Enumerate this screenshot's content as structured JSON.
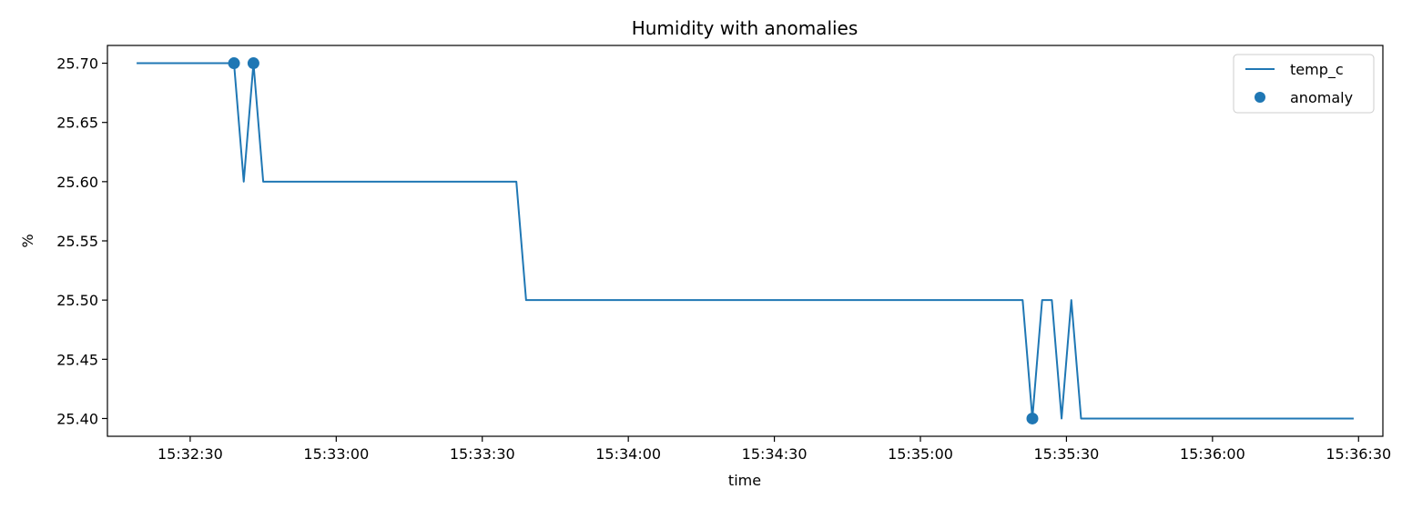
{
  "chart_data": {
    "type": "line",
    "title": "Humidity with anomalies",
    "xlabel": "time",
    "ylabel": "%",
    "x_ticks": [
      "15:32:30",
      "15:33:00",
      "15:33:30",
      "15:34:00",
      "15:34:30",
      "15:35:00",
      "15:35:30",
      "15:36:00",
      "15:36:30"
    ],
    "y_ticks": [
      "25.40",
      "25.45",
      "25.50",
      "25.55",
      "25.60",
      "25.65",
      "25.70"
    ],
    "xlim": [
      "15:32:13",
      "15:36:35"
    ],
    "ylim": [
      25.385,
      25.715
    ],
    "grid": false,
    "legend_position": "top-right",
    "series": [
      {
        "name": "temp_c",
        "kind": "line",
        "color": "#1f77b4",
        "points": [
          [
            "15:32:19",
            25.7
          ],
          [
            "15:32:39",
            25.7
          ],
          [
            "15:32:41",
            25.6
          ],
          [
            "15:32:43",
            25.7
          ],
          [
            "15:32:45",
            25.6
          ],
          [
            "15:33:37",
            25.6
          ],
          [
            "15:33:39",
            25.5
          ],
          [
            "15:35:21",
            25.5
          ],
          [
            "15:35:23",
            25.4
          ],
          [
            "15:35:25",
            25.5
          ],
          [
            "15:35:27",
            25.5
          ],
          [
            "15:35:29",
            25.4
          ],
          [
            "15:35:31",
            25.5
          ],
          [
            "15:35:33",
            25.4
          ],
          [
            "15:36:29",
            25.4
          ]
        ]
      },
      {
        "name": "anomaly",
        "kind": "scatter",
        "color": "#1f77b4",
        "points": [
          [
            "15:32:39",
            25.7
          ],
          [
            "15:32:43",
            25.7
          ],
          [
            "15:35:23",
            25.4
          ]
        ]
      }
    ]
  }
}
